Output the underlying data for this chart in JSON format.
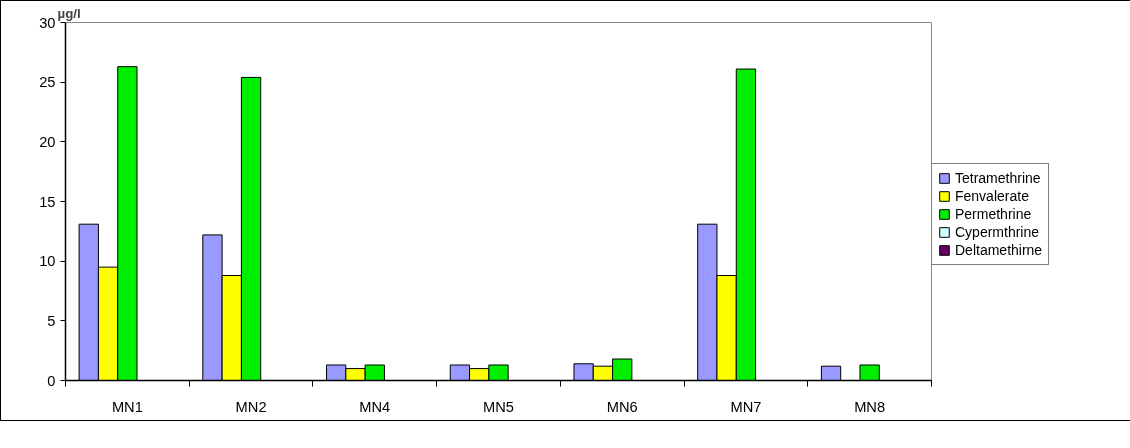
{
  "chart_data": {
    "type": "bar",
    "ylabel": "µg/l",
    "categories": [
      "MN1",
      "MN2",
      "MN4",
      "MN5",
      "MN6",
      "MN7",
      "MN8"
    ],
    "series": [
      {
        "name": "Tetramethrine",
        "color": "#9999ff",
        "values": [
          13.1,
          12.2,
          1.3,
          1.3,
          1.4,
          13.1,
          1.2
        ]
      },
      {
        "name": "Fenvalerate",
        "color": "#ffff00",
        "values": [
          9.5,
          8.8,
          1.0,
          1.0,
          1.2,
          8.8,
          null
        ]
      },
      {
        "name": "Permethrine",
        "color": "#00ee00",
        "values": [
          26.3,
          25.4,
          1.3,
          1.3,
          1.8,
          26.1,
          1.3
        ]
      },
      {
        "name": "Cypermthrine",
        "color": "#ccffff",
        "values": [
          null,
          null,
          null,
          null,
          null,
          null,
          null
        ]
      },
      {
        "name": "Deltamethirne",
        "color": "#660066",
        "values": [
          null,
          null,
          null,
          null,
          null,
          null,
          null
        ]
      }
    ],
    "ylim": [
      0,
      30
    ],
    "yticks": [
      0,
      5,
      10,
      15,
      20,
      25,
      30
    ],
    "grid": false,
    "legend": "right"
  }
}
